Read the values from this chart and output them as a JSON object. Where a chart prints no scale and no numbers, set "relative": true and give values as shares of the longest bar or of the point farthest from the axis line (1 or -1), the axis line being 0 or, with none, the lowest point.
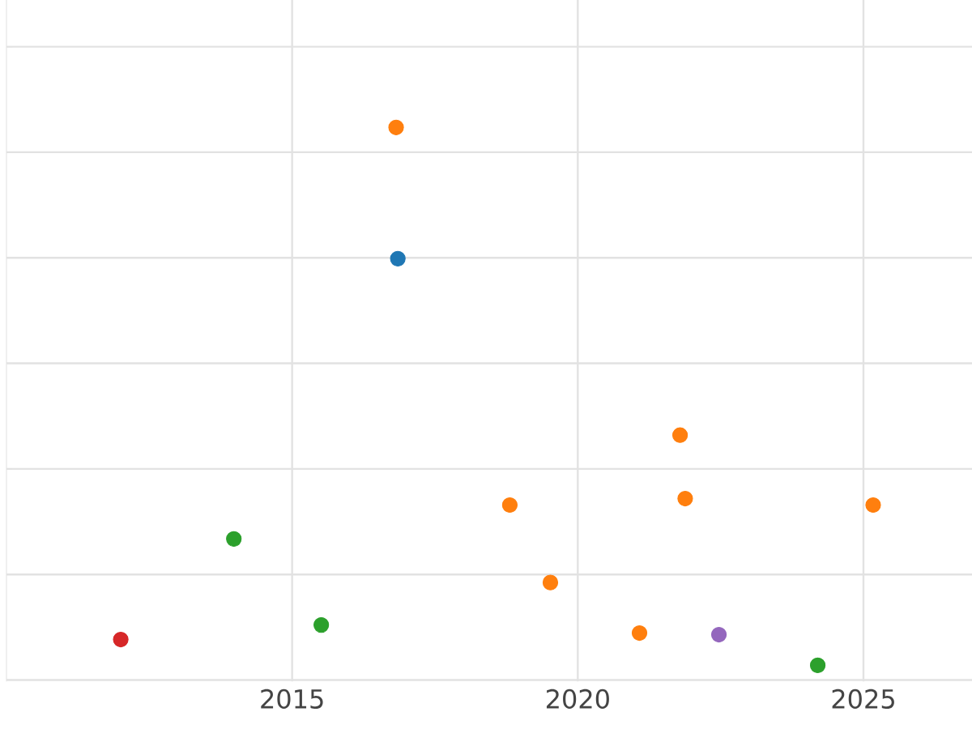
{
  "chart_data": {
    "type": "scatter",
    "relative": true,
    "marker": "circle",
    "grid": true,
    "xlim": [
      2010,
      2026.9
    ],
    "xticks": [
      2015,
      2020,
      2025
    ],
    "x": [
      2012.0,
      2013.98,
      2015.51,
      2016.82,
      2016.85,
      2018.81,
      2019.52,
      2021.08,
      2021.79,
      2021.88,
      2022.47,
      2024.2,
      2025.17
    ],
    "values": [
      0.048,
      0.235,
      0.075,
      1,
      0.756,
      0.298,
      0.154,
      0.06,
      0.428,
      0.31,
      0.057,
      0,
      0.298
    ],
    "colors": [
      "#d62728",
      "#2ca02c",
      "#2ca02c",
      "#ff7f0e",
      "#1f77b4",
      "#ff7f0e",
      "#ff7f0e",
      "#ff7f0e",
      "#ff7f0e",
      "#ff7f0e",
      "#9467bd",
      "#2ca02c",
      "#ff7f0e"
    ]
  }
}
